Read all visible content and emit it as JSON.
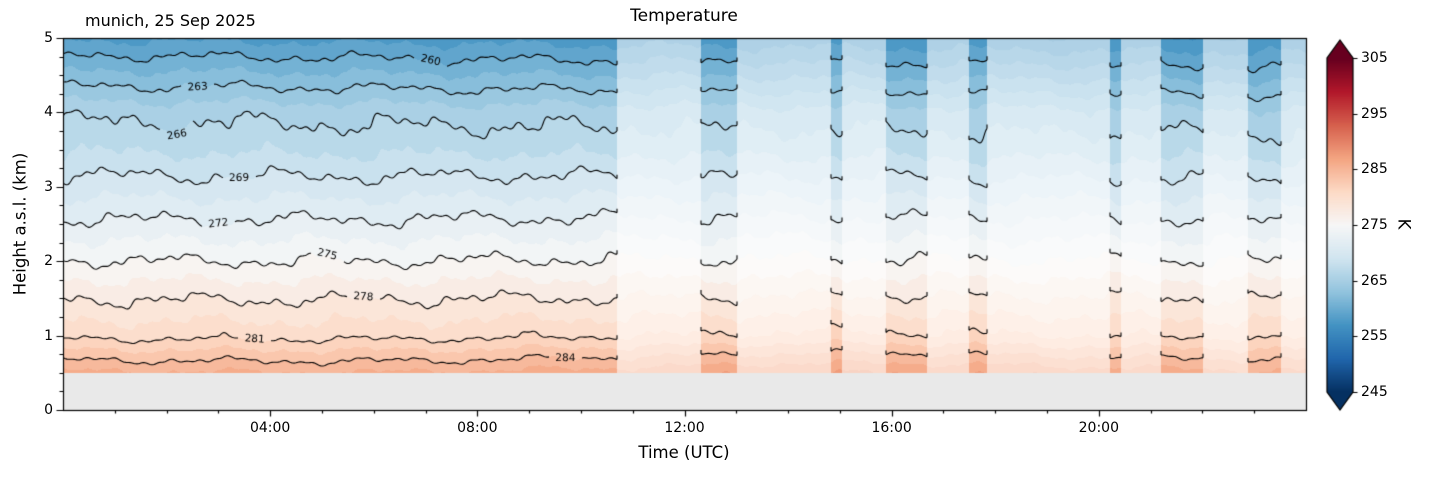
{
  "chart_data": {
    "type": "heatmap",
    "subtype": "filled-contour-time-height-section",
    "title": "Temperature",
    "annotation": "munich, 25 Sep 2025",
    "xlabel": "Time (UTC)",
    "ylabel": "Height a.s.l. (km)",
    "unit": "K",
    "xlim_hours": [
      0,
      24
    ],
    "ylim_km": [
      0,
      5
    ],
    "data_min_height_km": 0.5,
    "nodata_color": "#e9e9e9",
    "x_ticks": [
      {
        "t": 4,
        "label": "04:00"
      },
      {
        "t": 8,
        "label": "08:00"
      },
      {
        "t": 12,
        "label": "12:00"
      },
      {
        "t": 16,
        "label": "16:00"
      },
      {
        "t": 20,
        "label": "20:00"
      }
    ],
    "x_minor_tick_hours": 1,
    "y_ticks": [
      {
        "km": 0,
        "label": "0"
      },
      {
        "km": 1,
        "label": "1"
      },
      {
        "km": 2,
        "label": "2"
      },
      {
        "km": 3,
        "label": "3"
      },
      {
        "km": 4,
        "label": "4"
      },
      {
        "km": 5,
        "label": "5"
      }
    ],
    "y_minor_tick_km": 0.25,
    "colormap": {
      "name": "RdBu_r",
      "vmin": 245,
      "vmax": 305,
      "anchors": [
        "#053061",
        "#2166ac",
        "#4393c3",
        "#92c4de",
        "#d1e5f0",
        "#f7f7f7",
        "#fddbc7",
        "#f4a582",
        "#d6604d",
        "#b2182b",
        "#67001f"
      ]
    },
    "fill_step_K": 1.5,
    "colorbar": {
      "label": "K",
      "ticks": [
        245,
        255,
        265,
        275,
        285,
        295,
        305
      ],
      "extend": "both"
    },
    "contours": {
      "interval_K": 3,
      "levels": [
        260,
        263,
        266,
        269,
        272,
        275,
        278,
        281,
        284
      ],
      "labels": [
        {
          "level": 260,
          "t": 7.1
        },
        {
          "level": 263,
          "t": 2.6
        },
        {
          "level": 266,
          "t": 2.2
        },
        {
          "level": 269,
          "t": 3.4
        },
        {
          "level": 272,
          "t": 3.0
        },
        {
          "level": 275,
          "t": 5.1
        },
        {
          "level": 278,
          "t": 5.8
        },
        {
          "level": 281,
          "t": 3.7
        },
        {
          "level": 284,
          "t": 9.7
        }
      ]
    },
    "quality_flags": {
      "good_intervals_hours": [
        [
          0,
          10.7
        ],
        [
          12.31,
          13.02
        ],
        [
          14.82,
          15.05
        ],
        [
          15.9,
          16.68
        ],
        [
          17.49,
          17.84
        ],
        [
          20.21,
          20.43
        ],
        [
          21.2,
          22.01
        ],
        [
          22.88,
          23.52
        ]
      ],
      "flagged_fade_to_white": 0.55
    },
    "grid": {
      "times_hours": [
        0,
        2,
        4,
        6,
        8,
        10,
        12,
        14,
        16,
        18,
        20,
        22,
        24
      ],
      "heights_km": [
        0.5,
        1.0,
        1.5,
        2.0,
        2.5,
        3.0,
        3.5,
        4.0,
        4.5,
        5.0
      ],
      "temperature_K": [
        [
          285.8,
          285.7,
          285.6,
          285.6,
          285.8,
          286.1,
          286.5,
          286.9,
          287.0,
          286.7,
          286.3,
          286.0,
          285.8
        ],
        [
          280.6,
          280.5,
          280.5,
          280.5,
          280.6,
          280.8,
          281.0,
          281.3,
          281.3,
          281.1,
          280.9,
          280.7,
          280.6
        ],
        [
          277.9,
          277.9,
          277.9,
          277.9,
          278.0,
          278.0,
          278.1,
          278.2,
          278.2,
          278.2,
          278.1,
          278.0,
          277.9
        ],
        [
          275.1,
          275.0,
          275.0,
          275.0,
          275.1,
          275.1,
          275.2,
          275.2,
          275.2,
          275.1,
          275.1,
          275.0,
          275.0
        ],
        [
          272.4,
          272.3,
          272.3,
          272.3,
          272.4,
          272.4,
          272.5,
          272.5,
          272.4,
          272.4,
          272.3,
          272.3,
          272.2
        ],
        [
          269.8,
          269.7,
          269.7,
          269.7,
          269.8,
          269.8,
          269.8,
          269.7,
          269.7,
          269.6,
          269.6,
          269.5,
          269.5
        ],
        [
          267.3,
          267.3,
          267.2,
          267.2,
          267.2,
          267.1,
          267.1,
          267.0,
          267.0,
          266.9,
          266.9,
          266.9,
          266.8
        ],
        [
          265.6,
          265.5,
          265.5,
          265.4,
          265.3,
          265.3,
          265.2,
          265.1,
          265.1,
          265.0,
          264.9,
          264.9,
          264.8
        ],
        [
          262.0,
          261.9,
          261.8,
          261.7,
          261.6,
          261.5,
          261.4,
          261.3,
          261.2,
          261.1,
          261.0,
          260.9,
          260.8
        ],
        [
          258.3,
          258.2,
          258.1,
          258.0,
          257.9,
          257.8,
          257.7,
          257.6,
          257.5,
          257.3,
          257.2,
          257.1,
          257.1
        ]
      ]
    }
  }
}
